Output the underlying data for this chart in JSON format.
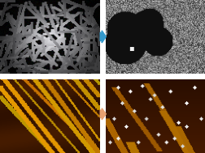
{
  "figure_width": 2.53,
  "figure_height": 1.89,
  "dpi": 100,
  "background_color": "#ffffff",
  "blue_arrow": {
    "color": "#3399cc"
  },
  "orange_arrow": {
    "color": "#e8a070"
  }
}
